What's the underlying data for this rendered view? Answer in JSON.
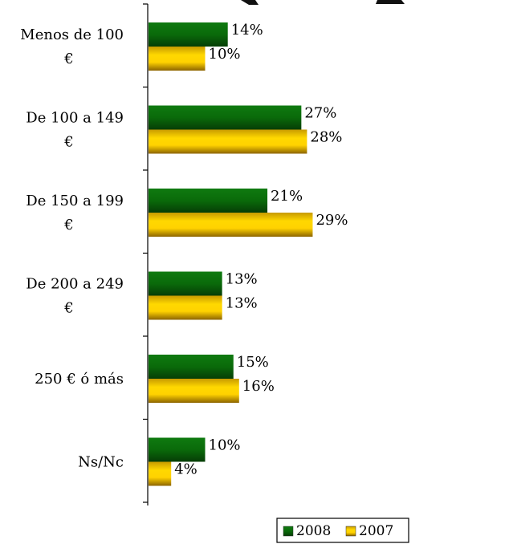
{
  "chart_data": {
    "type": "bar",
    "orientation": "horizontal",
    "title": "",
    "categories": [
      [
        "Menos de 100",
        "€"
      ],
      [
        "De 100 a 149",
        "€"
      ],
      [
        "De 150 a 199",
        "€"
      ],
      [
        "De 200 a 249",
        "€"
      ],
      [
        "250 € ó más"
      ],
      [
        "Ns/Nc"
      ]
    ],
    "series": [
      {
        "name": "2008",
        "values": [
          14,
          27,
          21,
          13,
          15,
          10
        ],
        "labels": [
          "14%",
          "27%",
          "21%",
          "13%",
          "15%",
          "10%"
        ],
        "color": "#0b6b0b"
      },
      {
        "name": "2007",
        "values": [
          10,
          28,
          29,
          13,
          16,
          4
        ],
        "labels": [
          "10%",
          "28%",
          "29%",
          "13%",
          "16%",
          "4%"
        ],
        "color": "#e8b800"
      }
    ],
    "value_unit": "%",
    "xlim": [
      0,
      30
    ],
    "grid": false,
    "legend_position": "bottom-right"
  }
}
